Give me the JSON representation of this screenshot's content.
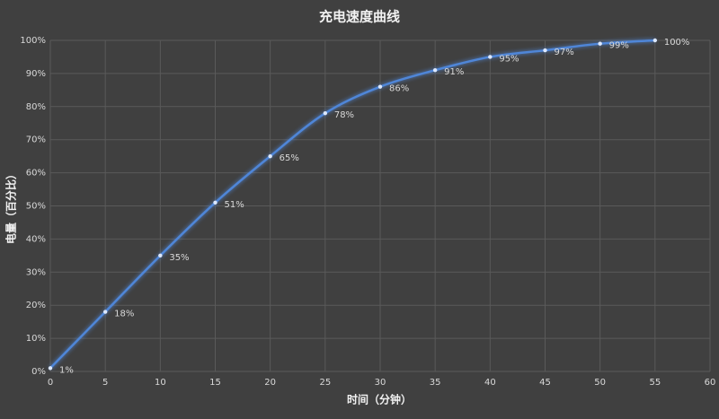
{
  "chart_data": {
    "type": "line",
    "title": "充电速度曲线",
    "x_label": "时间（分钟）",
    "y_label": "电量（百分比）",
    "x": [
      0,
      5,
      10,
      15,
      20,
      25,
      30,
      35,
      40,
      45,
      50,
      55
    ],
    "series": [
      {
        "color": "#4f86d8",
        "values": [
          1,
          18,
          35,
          51,
          65,
          78,
          86,
          91,
          95,
          97,
          99,
          100
        ],
        "value_labels": [
          "1%",
          "18%",
          "35%",
          "51%",
          "65%",
          "78%",
          "86%",
          "91%",
          "95%",
          "97%",
          "99%",
          "100%"
        ]
      }
    ],
    "xlim": [
      0,
      60
    ],
    "xticks": [
      0,
      5,
      10,
      15,
      20,
      25,
      30,
      35,
      40,
      45,
      50,
      55,
      60
    ],
    "ylim": [
      0,
      100
    ],
    "yticks": [
      {
        "value": 0,
        "label": "0%"
      },
      {
        "value": 10,
        "label": "10%"
      },
      {
        "value": 20,
        "label": "20%"
      },
      {
        "value": 30,
        "label": "30%"
      },
      {
        "value": 40,
        "label": "40%"
      },
      {
        "value": 50,
        "label": "50%"
      },
      {
        "value": 60,
        "label": "60%"
      },
      {
        "value": 70,
        "label": "70%"
      },
      {
        "value": 80,
        "label": "80%"
      },
      {
        "value": 90,
        "label": "90%"
      },
      {
        "value": 100,
        "label": "100%"
      }
    ],
    "grid": true
  }
}
